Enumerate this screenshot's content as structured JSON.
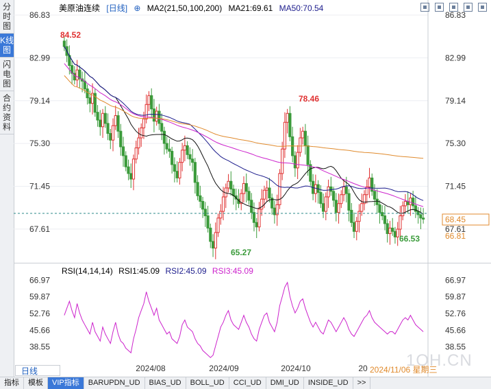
{
  "sidebar": {
    "tabs": [
      "分时图",
      "K线图",
      "闪电图",
      "合约资料"
    ],
    "active_index": 1
  },
  "header": {
    "symbol": "美原油连续",
    "period": "[日线]",
    "ma_params": "MA2(21,50,100,200)",
    "ma21": "MA21:69.61",
    "ma50": "MA50:70.54"
  },
  "price_axis": {
    "ticks": [
      "86.83",
      "82.99",
      "79.14",
      "75.30",
      "71.45",
      "67.61"
    ],
    "last_price": "68.45",
    "ref_price": "66.81"
  },
  "annotations": {
    "high1": "84.52",
    "high2": "78.46",
    "low1": "65.27",
    "low2": "66.53"
  },
  "rsi": {
    "label": "RSI(14,14,14)",
    "rsi1": "RSI1:45.09",
    "rsi2": "RSI2:45.09",
    "rsi3": "RSI3:45.09",
    "ticks": [
      "66.97",
      "59.87",
      "52.76",
      "45.66",
      "38.55"
    ]
  },
  "time_axis": {
    "labels": [
      "2024/08",
      "2024/09",
      "2024/10",
      "20"
    ]
  },
  "period_button": "日线",
  "date_stamp": "2024/11/06 星期三",
  "watermark": "1QH.CN",
  "bottom_tabs": [
    "指标",
    "模板",
    "VIP指标",
    "BARUPDN_UD",
    "BIAS_UD",
    "BOLL_UD",
    "CCI_UD",
    "DMI_UD",
    "INSIDE_UD",
    ">>"
  ],
  "colors": {
    "up": "#e03131",
    "down": "#3b9b3b",
    "ma21": "#111111",
    "ma50": "#1c1c8c",
    "ma100": "#cc22cc",
    "ma200": "#e08a2c",
    "rsi": "#cc22cc"
  },
  "chart_data": {
    "type": "candlestick",
    "y_range": [
      66.0,
      86.83
    ],
    "closes": [
      84.0,
      83.2,
      82.3,
      81.6,
      81.0,
      81.9,
      81.1,
      80.9,
      80.2,
      79.4,
      78.9,
      79.8,
      78.1,
      77.4,
      76.8,
      78.0,
      77.1,
      76.2,
      75.6,
      76.9,
      77.8,
      76.4,
      75.0,
      74.2,
      73.2,
      72.6,
      72.1,
      73.9,
      74.9,
      75.8,
      76.7,
      77.5,
      78.8,
      79.6,
      78.4,
      77.3,
      78.2,
      77.1,
      76.4,
      75.3,
      74.8,
      74.6,
      73.4,
      72.8,
      72.2,
      73.6,
      74.7,
      75.1,
      74.3,
      73.9,
      73.6,
      71.8,
      70.6,
      70.1,
      69.4,
      68.8,
      67.7,
      66.5,
      65.9,
      67.3,
      68.6,
      69.2,
      70.5,
      71.3,
      71.9,
      71.2,
      70.6,
      70.3,
      69.9,
      70.8,
      71.7,
      71.0,
      70.2,
      69.1,
      68.2,
      67.8,
      69.4,
      70.3,
      71.1,
      71.3,
      70.4,
      69.5,
      68.9,
      69.8,
      72.6,
      74.8,
      77.2,
      78.0,
      75.9,
      74.2,
      73.1,
      74.5,
      75.8,
      76.4,
      75.1,
      73.4,
      71.9,
      70.8,
      71.6,
      70.9,
      69.9,
      69.2,
      70.5,
      71.4,
      71.0,
      70.2,
      69.1,
      69.9,
      70.7,
      71.4,
      70.8,
      69.3,
      68.2,
      67.4,
      68.3,
      69.2,
      69.9,
      70.7,
      71.4,
      72.2,
      71.0,
      70.3,
      69.8,
      69.1,
      68.8,
      68.1,
      67.2,
      67.7,
      67.4,
      66.9,
      67.6,
      68.8,
      69.7,
      70.1,
      69.8,
      70.4,
      69.7,
      69.2,
      68.9,
      68.6,
      68.5
    ],
    "rsi_values": [
      52,
      55,
      58,
      54,
      51,
      57,
      53,
      50,
      48,
      46,
      44,
      49,
      45,
      43,
      41,
      47,
      44,
      42,
      40,
      45,
      49,
      44,
      41,
      40,
      38,
      37,
      36,
      42,
      46,
      51,
      54,
      57,
      62,
      58,
      55,
      52,
      55,
      50,
      48,
      46,
      44,
      45,
      42,
      41,
      40,
      43,
      48,
      50,
      47,
      46,
      45,
      42,
      40,
      39,
      37,
      36,
      35,
      34,
      35,
      39,
      43,
      47,
      49,
      52,
      54,
      50,
      48,
      47,
      46,
      49,
      52,
      49,
      47,
      44,
      42,
      41,
      46,
      49,
      52,
      53,
      49,
      47,
      45,
      49,
      56,
      60,
      64,
      66,
      60,
      56,
      53,
      55,
      58,
      59,
      55,
      52,
      49,
      47,
      49,
      47,
      45,
      44,
      47,
      50,
      49,
      47,
      45,
      47,
      49,
      51,
      49,
      46,
      44,
      43,
      45,
      47,
      49,
      51,
      52,
      54,
      51,
      49,
      48,
      47,
      46,
      45,
      44,
      45,
      45,
      44,
      46,
      48,
      50,
      51,
      50,
      52,
      50,
      48,
      47,
      46,
      45
    ]
  }
}
